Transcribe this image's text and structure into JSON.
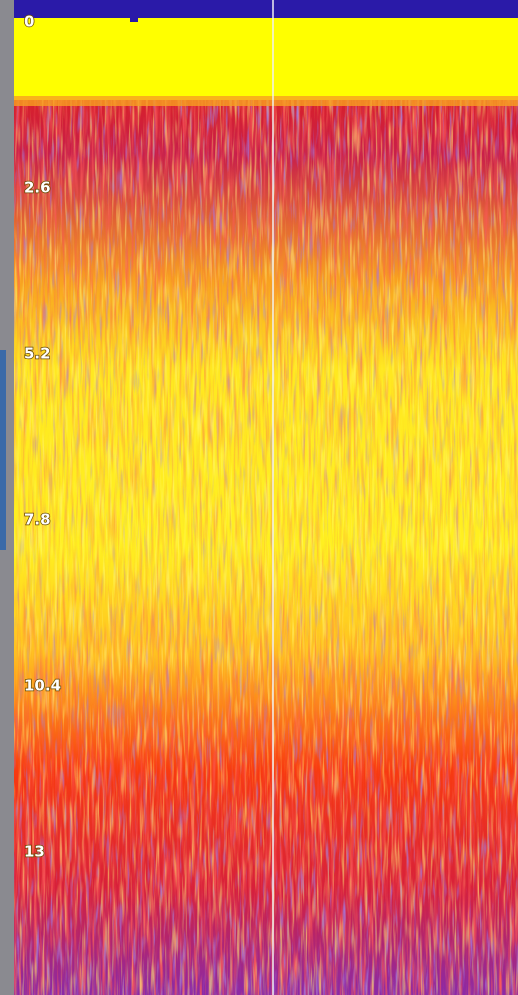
{
  "depth_scale": {
    "ticks": [
      0,
      2.6,
      5.2,
      7.8,
      10.4,
      13
    ]
  }
}
